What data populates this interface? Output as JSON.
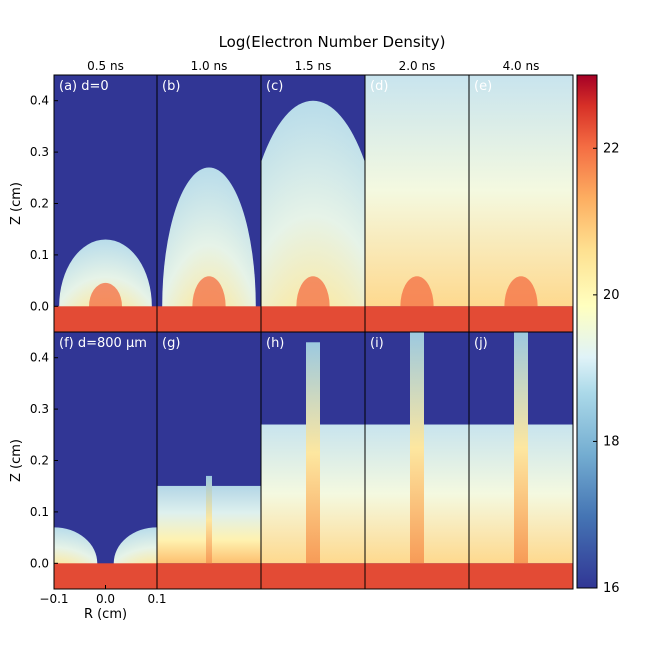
{
  "chart_data": {
    "type": "heatmap",
    "title": "Log(Electron Number Density)",
    "times": [
      "0.5 ns",
      "1.0 ns",
      "1.5 ns",
      "2.0 ns",
      "4.0 ns"
    ],
    "rows": [
      {
        "name": "d=0",
        "panels": [
          {
            "label": "(a) d=0",
            "front_z": 0.13
          },
          {
            "label": "(b)",
            "front_z": 0.27
          },
          {
            "label": "(c)",
            "front_z": 0.4
          },
          {
            "label": "(d)",
            "front_z": 0.45
          },
          {
            "label": "(e)",
            "front_z": 0.45
          }
        ]
      },
      {
        "name": "d=800 μm",
        "panels": [
          {
            "label": "(f) d=800 μm",
            "front_z": 0.07
          },
          {
            "label": "(g)",
            "front_z": 0.17
          },
          {
            "label": "(h)",
            "front_z": 0.43
          },
          {
            "label": "(i)",
            "front_z": 0.45
          },
          {
            "label": "(j)",
            "front_z": 0.45
          }
        ]
      }
    ],
    "ylabel": "Z (cm)",
    "xlabel": "R (cm)",
    "ylim": [
      -0.05,
      0.45
    ],
    "xlim": [
      -0.1,
      0.1
    ],
    "yticks": [
      "0.0",
      "0.1",
      "0.2",
      "0.3",
      "0.4"
    ],
    "xticks": [
      "−0.1",
      "0.0",
      "0.1"
    ],
    "colorbar": {
      "min": 16,
      "max": 23,
      "ticks": [
        "16",
        "18",
        "20",
        "22"
      ]
    }
  }
}
